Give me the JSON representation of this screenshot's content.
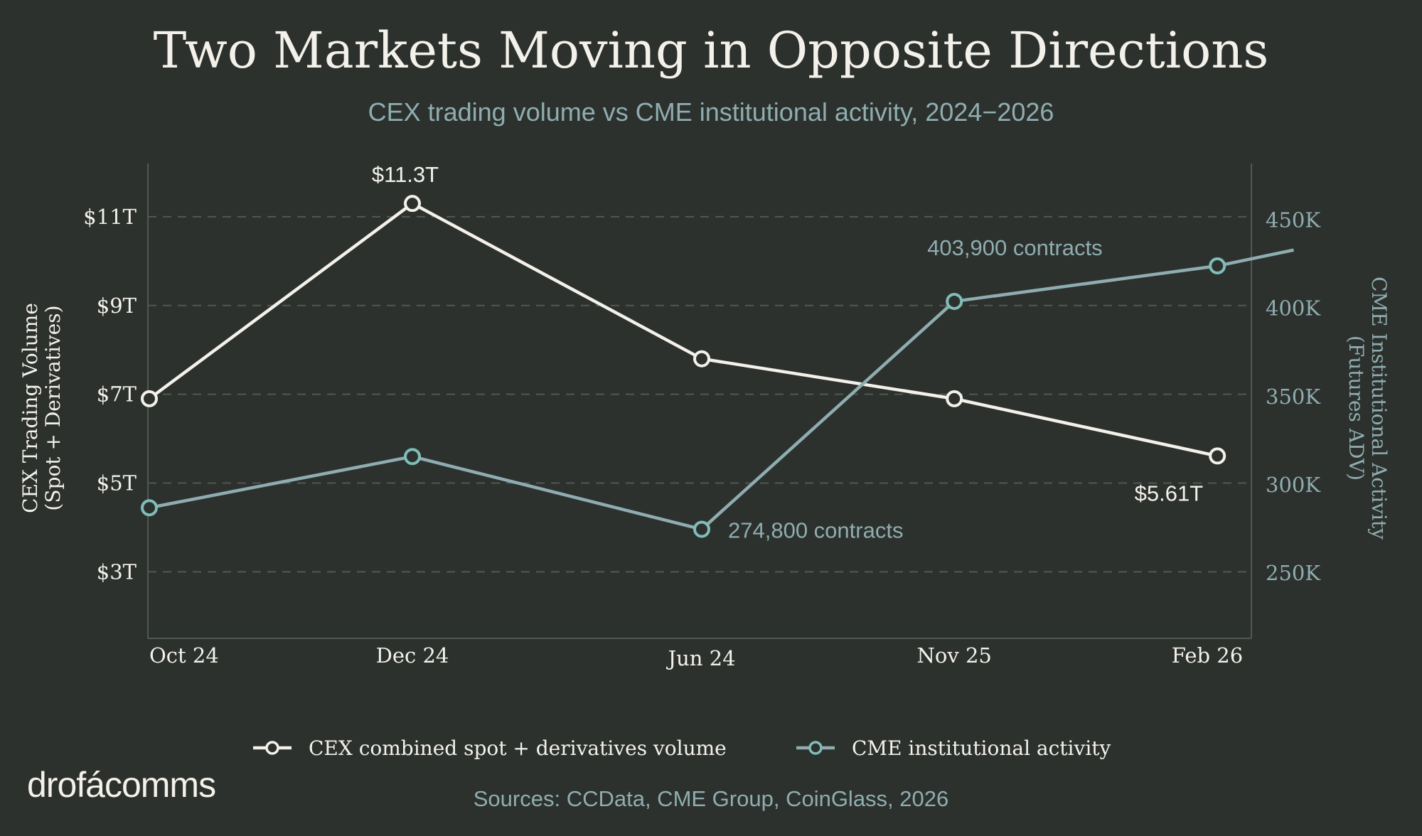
{
  "title": "Two Markets Moving in Opposite Directions",
  "subtitle": "CEX trading volume vs CME institutional activity, 2024−2026",
  "logo_text": "drofácomms",
  "source": "Sources: CCData, CME Group, CoinGlass, 2026",
  "colors": {
    "background": "#2d312e",
    "cex": "#f3f1ea",
    "cme": "#8fadb0",
    "cme_marker": "#7fbdb9",
    "grid": "#505853"
  },
  "chart_data": {
    "type": "line",
    "categories": [
      "Oct 24",
      "Dec 24",
      "Jun 24",
      "Nov 25",
      "Feb 26"
    ],
    "x_positions": [
      0,
      1,
      2.1,
      3.06,
      4.06
    ],
    "grid": true,
    "legend_placement": "bottom",
    "y_left": {
      "label_line1": "CEX Trading Volume",
      "label_line2": "(Spot + Derivatives)",
      "ticks": [
        "$3T",
        "$5T",
        "$7T",
        "$9T",
        "$11T"
      ],
      "tick_values": [
        3,
        5,
        7,
        9,
        11
      ],
      "range": [
        1.5,
        12.2
      ]
    },
    "y_right": {
      "label_line1": "CME Institutional Activity",
      "label_line2": "(Futures ADV)",
      "ticks": [
        "250K",
        "300K",
        "350K",
        "400K",
        "450K"
      ],
      "tick_values": [
        250000,
        300000,
        350000,
        400000,
        450000
      ],
      "range": [
        213000,
        482000
      ]
    },
    "series": [
      {
        "name": "CEX combined spot + derivatives volume",
        "axis": "left",
        "x": [
          0,
          1,
          2.1,
          3.06,
          4.06
        ],
        "values": [
          6.9,
          11.3,
          7.8,
          6.9,
          5.61
        ]
      },
      {
        "name": "CME institutional activity",
        "axis": "right",
        "x": [
          0,
          1,
          2.1,
          3.06,
          4.06,
          4.35
        ],
        "values": [
          287000,
          316000,
          274800,
          403900,
          424000,
          433000
        ],
        "markers": [
          true,
          true,
          true,
          true,
          true,
          false
        ]
      }
    ],
    "annotations": [
      {
        "text": "$11.3T",
        "series": 0,
        "point": 1
      },
      {
        "text": "$5.61T",
        "series": 0,
        "point": 4
      },
      {
        "text": "274,800 contracts",
        "series": 1,
        "point": 2
      },
      {
        "text": "403,900 contracts",
        "series": 1,
        "point": 3
      }
    ]
  }
}
